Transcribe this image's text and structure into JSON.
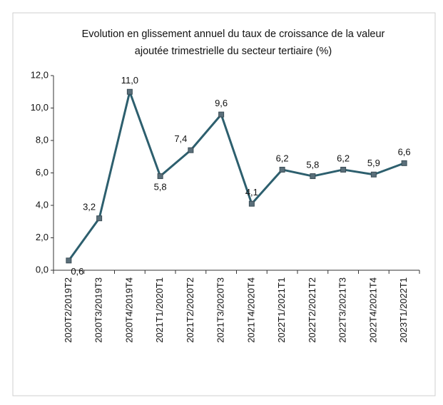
{
  "chart_data": {
    "type": "line",
    "title": [
      "Evolution en glissement annuel du taux de croissance de la valeur",
      "ajoutée trimestrielle du secteur tertiaire (%)"
    ],
    "categories": [
      "2020T2/2019T2",
      "2020T3/2019T3",
      "2020T4/2019T4",
      "2021T1/2020T1",
      "2021T2/2020T2",
      "2021T3/2020T3",
      "2021T4/2020T4",
      "2022T1/2021T1",
      "2022T2/2021T2",
      "2022T3/2021T3",
      "2022T4/2021T4",
      "2023T1/2022T1"
    ],
    "series": [
      {
        "color": "#2d5f6e",
        "values": [
          0.6,
          3.2,
          11.0,
          5.8,
          7.4,
          9.6,
          4.1,
          6.2,
          5.8,
          6.2,
          5.9,
          6.6
        ],
        "value_labels": [
          "0,6",
          "3,2",
          "11,0",
          "5,8",
          "7,4",
          "9,6",
          "4,1",
          "6,2",
          "5,8",
          "6,2",
          "5,9",
          "6,6"
        ]
      }
    ],
    "ylim": [
      0,
      12
    ],
    "yticks": [
      {
        "value": 0,
        "label": "0,0"
      },
      {
        "value": 2,
        "label": "2,0"
      },
      {
        "value": 4,
        "label": "4,0"
      },
      {
        "value": 6,
        "label": "6,0"
      },
      {
        "value": 8,
        "label": "8,0"
      },
      {
        "value": 10,
        "label": "10,0"
      },
      {
        "value": 12,
        "label": "12,0"
      }
    ],
    "grid": false
  }
}
